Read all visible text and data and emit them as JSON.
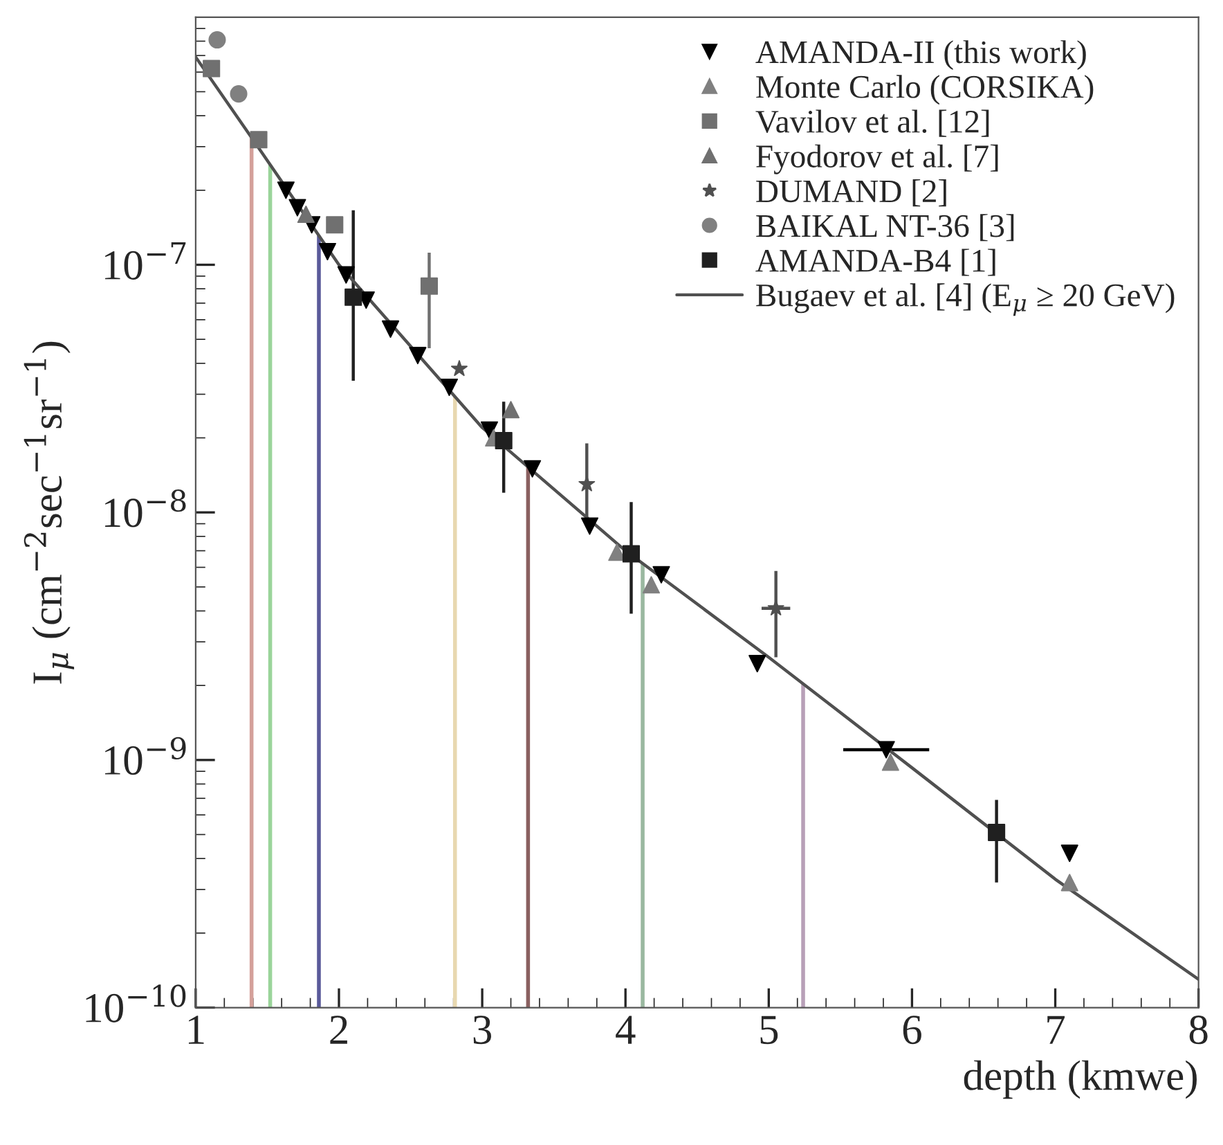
{
  "chart_data": {
    "type": "scatter",
    "xlabel": "depth (kmwe)",
    "ylabel": "I$_{μ}$ (cm$^{−2}$sec$^{−1}$sr$^{−1}$)",
    "log": "y",
    "xlim": [
      1,
      8
    ],
    "xticks": [
      1,
      2,
      3,
      4,
      5,
      6,
      7,
      8
    ],
    "ylim": [
      1e-10,
      1e-06
    ],
    "yticks": [
      {
        "value": 1e-10,
        "label": "10$^{−10}$"
      },
      {
        "value": 1e-09,
        "label": "10$^{−9}$"
      },
      {
        "value": 1e-08,
        "label": "10$^{−8}$"
      },
      {
        "value": 1e-07,
        "label": "10$^{−7}$"
      }
    ],
    "grid": false,
    "legend": "top right",
    "series": [
      {
        "name": "AMANDA-II (this work)",
        "color": "#000000",
        "marker": "triangle_down",
        "x": [
          1.63,
          1.71,
          1.81,
          1.92,
          2.05,
          2.19,
          2.36,
          2.55,
          2.77,
          3.05,
          3.35,
          3.75,
          4.25,
          4.92,
          5.82,
          7.1
        ],
        "values": [
          2e-07,
          1.7e-07,
          1.45e-07,
          1.13e-07,
          9.1e-08,
          7.2e-08,
          5.5e-08,
          4.3e-08,
          3.2e-08,
          2.15e-08,
          1.5e-08,
          8.8e-09,
          5.6e-09,
          2.45e-09,
          1.1e-09,
          4.2e-10
        ],
        "xerrors": [
          null,
          null,
          null,
          null,
          null,
          null,
          null,
          null,
          null,
          null,
          null,
          null,
          null,
          null,
          0.3,
          null
        ]
      },
      {
        "name": "Monte Carlo (CORSIKA)",
        "color": "#808080",
        "marker": "triangle",
        "x": [
          3.08,
          3.94,
          4.18,
          5.85,
          7.1
        ],
        "values": [
          2e-08,
          6.9e-09,
          5.1e-09,
          9.8e-10,
          3.2e-10
        ]
      },
      {
        "name": "Vavilov et al. [12]",
        "color": "#707070",
        "marker": "square",
        "x": [
          1.11,
          1.44,
          1.97,
          2.63
        ],
        "values": [
          6.2e-07,
          3.2e-07,
          1.45e-07,
          8.2e-08
        ],
        "errors": [
          null,
          null,
          null,
          [
            4.6e-08,
            1.12e-07
          ]
        ]
      },
      {
        "name": "Fyodorov et al. [7]",
        "color": "#707070",
        "marker": "triangle",
        "x": [
          1.77,
          3.2
        ],
        "values": [
          1.6e-07,
          2.6e-08
        ]
      },
      {
        "name": "DUMAND [2]",
        "color": "#505050",
        "marker": "star",
        "x": [
          2.84,
          3.73,
          5.05
        ],
        "values": [
          3.8e-08,
          1.3e-08,
          4.1e-09
        ],
        "errors": [
          null,
          [
            9e-09,
            1.9e-08
          ],
          [
            2.6e-09,
            5.8e-09
          ]
        ],
        "xerrors": [
          null,
          null,
          0.1
        ]
      },
      {
        "name": "BAIKAL NT-36 [3]",
        "color": "#808080",
        "marker": "circle",
        "x": [
          1.15,
          1.3
        ],
        "values": [
          8.1e-07,
          4.9e-07
        ]
      },
      {
        "name": "AMANDA-B4 [1]",
        "color": "#202020",
        "marker": "square",
        "x": [
          2.1,
          3.15,
          4.04,
          6.59
        ],
        "values": [
          7.4e-08,
          1.95e-08,
          6.8e-09,
          5.1e-10
        ],
        "errors": [
          [
            3.4e-08,
            1.66e-07
          ],
          [
            1.2e-08,
            2.8e-08
          ],
          [
            3.9e-09,
            1.1e-08
          ],
          [
            3.2e-10,
            6.9e-10
          ]
        ]
      },
      {
        "name": "Bugaev et al. [4] (E$_{μ}$ ≥ 20 GeV)",
        "type": "line",
        "color": "#505050",
        "marker": "none",
        "line_style": "solid",
        "x": [
          1,
          1.4,
          2,
          3,
          4,
          5,
          6,
          7,
          8
        ],
        "values": [
          6.9e-07,
          3.2e-07,
          1e-07,
          2.2e-08,
          7e-09,
          2.6e-09,
          9.3e-10,
          3.3e-10,
          1.3e-10
        ]
      }
    ],
    "ref_lines": [
      {
        "axis": "x",
        "value": 1.39,
        "color": "#d4a09a"
      },
      {
        "axis": "x",
        "value": 1.52,
        "color": "#9ad49a"
      },
      {
        "axis": "x",
        "value": 1.86,
        "color": "#5a5a9a"
      },
      {
        "axis": "x",
        "value": 2.81,
        "color": "#e8d8b0"
      },
      {
        "axis": "x",
        "value": 3.32,
        "color": "#8a6060"
      },
      {
        "axis": "x",
        "value": 4.12,
        "color": "#9ab8a0"
      },
      {
        "axis": "x",
        "value": 5.24,
        "color": "#b8a0b8"
      }
    ]
  }
}
